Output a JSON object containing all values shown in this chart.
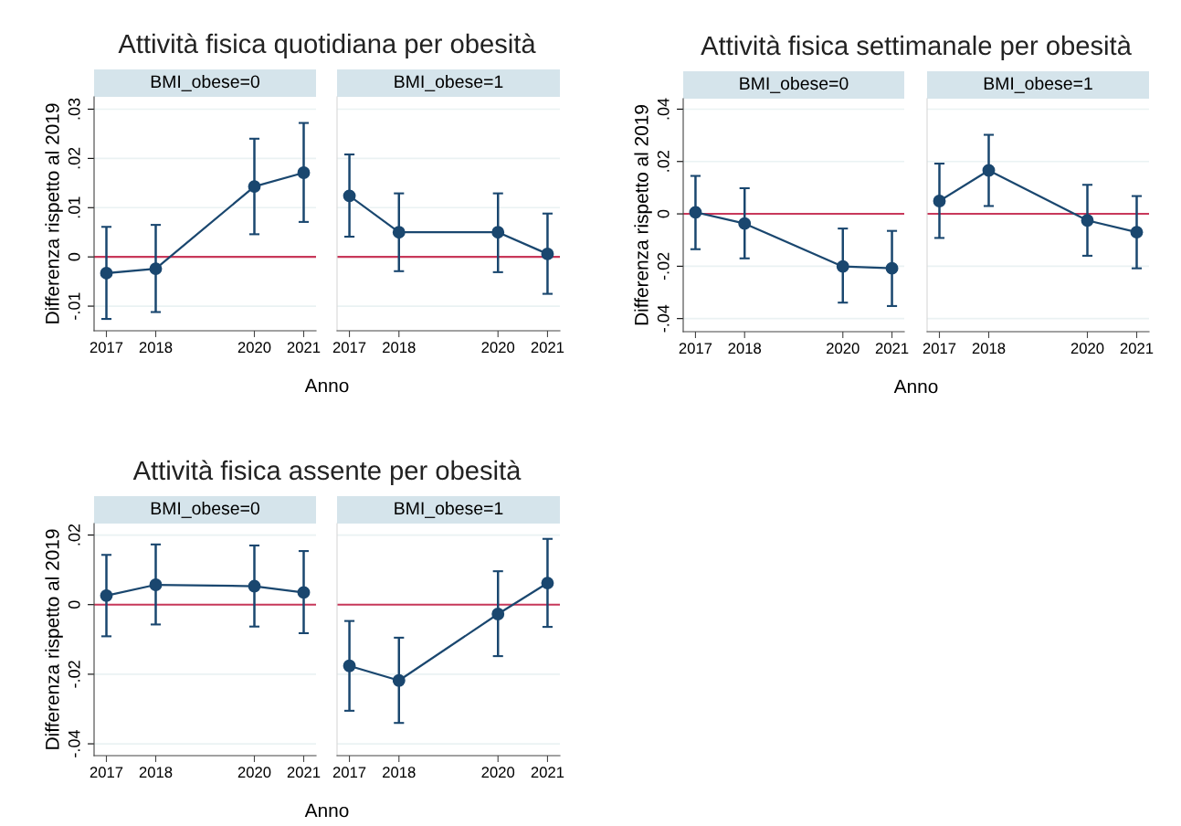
{
  "chart_data": [
    {
      "type": "line",
      "title": "Attività fisica quotidiana per obesità",
      "subtitle": "BMI_obese=0",
      "xlabel": "Anno",
      "ylabel": "Differenza rispetto al 2019",
      "x": [
        2017,
        2018,
        2020,
        2021
      ],
      "xlim": [
        2016.75,
        2021.25
      ],
      "xticks": [
        2017,
        2018,
        2020,
        2021
      ],
      "ylim": [
        -0.015,
        0.0325
      ],
      "yticks": [
        {
          "value": -0.01,
          "label": "-.01"
        },
        0,
        {
          "value": 0.01,
          "label": ".01"
        },
        {
          "value": 0.02,
          "label": ".02"
        },
        {
          "value": 0.03,
          "label": ".03"
        }
      ],
      "grid": "y",
      "marker": "circle",
      "line_style": "solid",
      "ref_lines": [
        {
          "axis": "y",
          "value": 0,
          "color": "#c8385a"
        }
      ],
      "series": [
        {
          "color": "#1a476f",
          "values": [
            -0.0033,
            -0.0024,
            0.0143,
            0.0171
          ],
          "errors": [
            [
              -0.0126,
              0.0061
            ],
            [
              -0.0112,
              0.0065
            ],
            [
              0.0046,
              0.024
            ],
            [
              0.0071,
              0.0272
            ]
          ]
        }
      ]
    },
    {
      "type": "line",
      "subtitle": "BMI_obese=1",
      "x": [
        2017,
        2018,
        2020,
        2021
      ],
      "xlim": [
        2016.75,
        2021.25
      ],
      "xticks": [
        2017,
        2018,
        2020,
        2021
      ],
      "ylim": [
        -0.015,
        0.0325
      ],
      "yticks": [
        -0.01,
        0,
        0.01,
        0.02,
        0.03
      ],
      "tick_labels": "x",
      "grid": "y",
      "marker": "circle",
      "line_style": "solid",
      "ref_lines": [
        {
          "axis": "y",
          "value": 0,
          "color": "#c8385a"
        }
      ],
      "series": [
        {
          "color": "#1a476f",
          "values": [
            0.0124,
            0.005,
            0.005,
            0.0006
          ],
          "errors": [
            [
              0.0041,
              0.0208
            ],
            [
              -0.0029,
              0.0129
            ],
            [
              -0.0031,
              0.0129
            ],
            [
              -0.0075,
              0.0088
            ]
          ]
        }
      ]
    },
    {
      "type": "line",
      "title": "Attività fisica settimanale per obesità",
      "subtitle": "BMI_obese=0",
      "xlabel": "Anno",
      "ylabel": "Differenza rispetto al 2019",
      "x": [
        2017,
        2018,
        2020,
        2021
      ],
      "xlim": [
        2016.75,
        2021.25
      ],
      "xticks": [
        2017,
        2018,
        2020,
        2021
      ],
      "ylim": [
        -0.045,
        0.044
      ],
      "yticks": [
        {
          "value": -0.04,
          "label": "-.04"
        },
        {
          "value": -0.02,
          "label": "-.02"
        },
        0,
        {
          "value": 0.02,
          "label": ".02"
        },
        {
          "value": 0.04,
          "label": ".04"
        }
      ],
      "grid": "y",
      "marker": "circle",
      "line_style": "solid",
      "ref_lines": [
        {
          "axis": "y",
          "value": 0,
          "color": "#c8385a"
        }
      ],
      "series": [
        {
          "color": "#1a476f",
          "values": [
            0.0006,
            -0.0037,
            -0.0201,
            -0.0208
          ],
          "errors": [
            [
              -0.0135,
              0.0145
            ],
            [
              -0.017,
              0.0098
            ],
            [
              -0.0339,
              -0.0056
            ],
            [
              -0.0352,
              -0.0065
            ]
          ]
        }
      ]
    },
    {
      "type": "line",
      "subtitle": "BMI_obese=1",
      "x": [
        2017,
        2018,
        2020,
        2021
      ],
      "xlim": [
        2016.75,
        2021.25
      ],
      "xticks": [
        2017,
        2018,
        2020,
        2021
      ],
      "ylim": [
        -0.045,
        0.044
      ],
      "yticks": [
        -0.04,
        -0.02,
        0,
        0.02,
        0.04
      ],
      "tick_labels": "x",
      "grid": "y",
      "marker": "circle",
      "line_style": "solid",
      "ref_lines": [
        {
          "axis": "y",
          "value": 0,
          "color": "#c8385a"
        }
      ],
      "series": [
        {
          "color": "#1a476f",
          "values": [
            0.0049,
            0.0166,
            -0.0025,
            -0.007
          ],
          "errors": [
            [
              -0.0092,
              0.0192
            ],
            [
              0.003,
              0.0302
            ],
            [
              -0.016,
              0.0111
            ],
            [
              -0.0208,
              0.0068
            ]
          ]
        }
      ]
    },
    {
      "type": "line",
      "title": "Attività fisica assente per obesità",
      "subtitle": "BMI_obese=0",
      "xlabel": "Anno",
      "ylabel": "Differenza rispetto al 2019",
      "x": [
        2017,
        2018,
        2020,
        2021
      ],
      "xlim": [
        2016.75,
        2021.25
      ],
      "xticks": [
        2017,
        2018,
        2020,
        2021
      ],
      "ylim": [
        -0.0434,
        0.0233
      ],
      "yticks": [
        {
          "value": -0.04,
          "label": "-.04"
        },
        {
          "value": -0.02,
          "label": "-.02"
        },
        0,
        {
          "value": 0.02,
          "label": ".02"
        }
      ],
      "grid": "y",
      "marker": "circle",
      "line_style": "solid",
      "ref_lines": [
        {
          "axis": "y",
          "value": 0,
          "color": "#c8385a"
        }
      ],
      "series": [
        {
          "color": "#1a476f",
          "values": [
            0.0026,
            0.0057,
            0.0053,
            0.0035
          ],
          "errors": [
            [
              -0.0091,
              0.0143
            ],
            [
              -0.0057,
              0.0173
            ],
            [
              -0.0063,
              0.017
            ],
            [
              -0.0082,
              0.0154
            ]
          ]
        }
      ]
    },
    {
      "type": "line",
      "subtitle": "BMI_obese=1",
      "x": [
        2017,
        2018,
        2020,
        2021
      ],
      "xlim": [
        2016.75,
        2021.25
      ],
      "xticks": [
        2017,
        2018,
        2020,
        2021
      ],
      "ylim": [
        -0.0434,
        0.0233
      ],
      "yticks": [
        -0.04,
        -0.02,
        0,
        0.02
      ],
      "tick_labels": "x",
      "grid": "y",
      "marker": "circle",
      "line_style": "solid",
      "ref_lines": [
        {
          "axis": "y",
          "value": 0,
          "color": "#c8385a"
        }
      ],
      "series": [
        {
          "color": "#1a476f",
          "values": [
            -0.0176,
            -0.0218,
            -0.0027,
            0.0062
          ],
          "errors": [
            [
              -0.0305,
              -0.0047
            ],
            [
              -0.034,
              -0.0095
            ],
            [
              -0.0148,
              0.0096
            ],
            [
              -0.0064,
              0.0189
            ]
          ]
        }
      ]
    }
  ]
}
